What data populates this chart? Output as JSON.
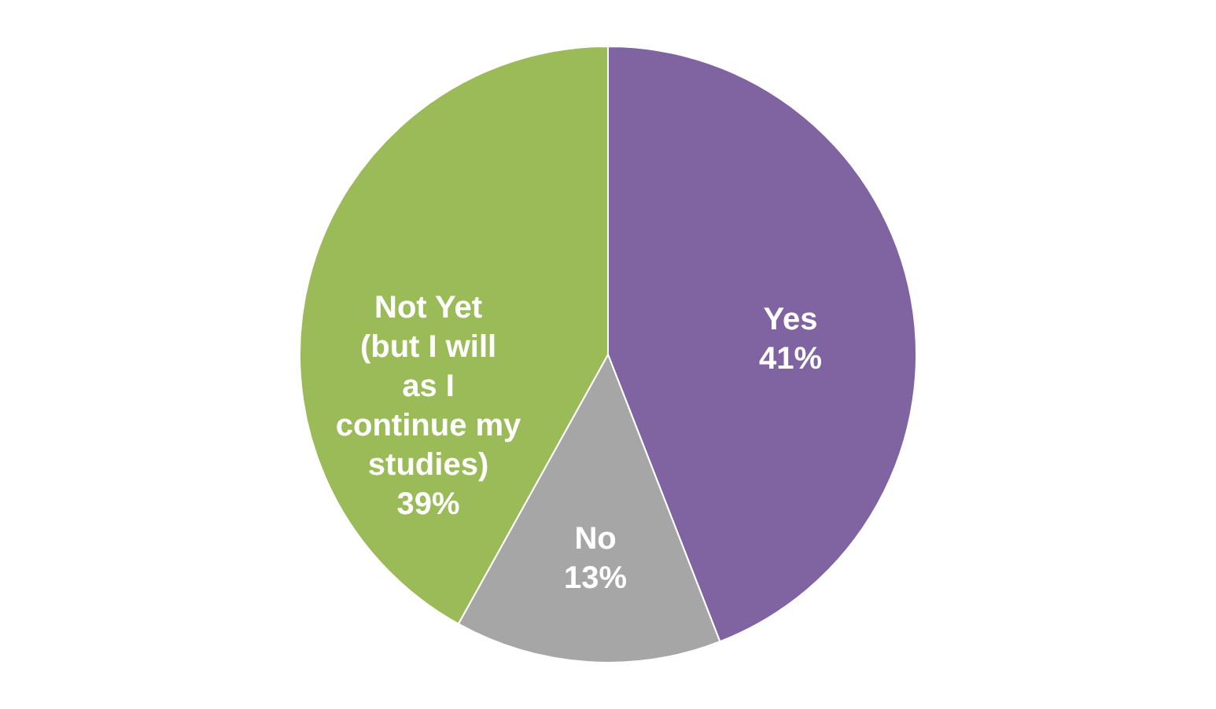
{
  "chart_data": {
    "type": "pie",
    "categories": [
      "Yes",
      "No",
      "Not Yet (but I will as I continue my studies)"
    ],
    "values": [
      41,
      13,
      39
    ],
    "colors": [
      "#8064a2",
      "#a6a6a6",
      "#9bbb59"
    ],
    "value_labels": [
      "41%",
      "13%",
      "39%"
    ],
    "legend": false
  }
}
